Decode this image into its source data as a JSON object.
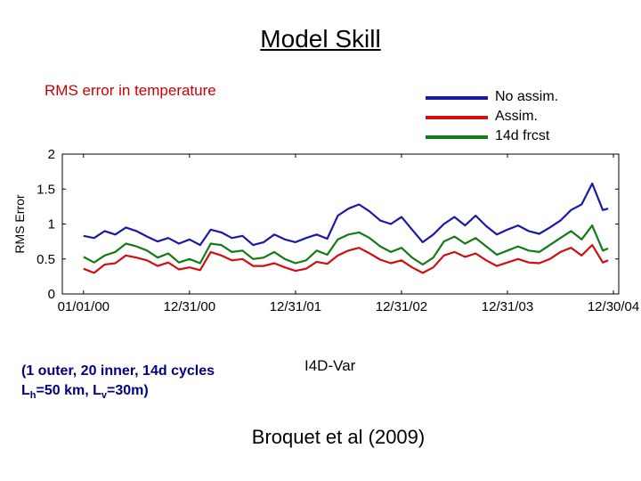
{
  "slide": {
    "title": "Model Skill",
    "note_line1": "(1 outer, 20 inner, 14d cycles",
    "note_l": "L",
    "note_h_sub": "h",
    "note_mid": "=50 km, L",
    "note_v_sub": "v",
    "note_end": "=30m)",
    "method": "I4D-Var",
    "citation": "Broquet et al (2009)"
  },
  "chart_data": {
    "type": "line",
    "title": "RMS error in temperature",
    "xlabel": "",
    "ylabel": "RMS Error",
    "ylim": [
      0,
      2
    ],
    "yticks": [
      0,
      0.5,
      1,
      1.5,
      2
    ],
    "ytick_labels": [
      "0",
      "0.5",
      "1",
      "1.5",
      "2"
    ],
    "xlim": [
      -0.2,
      5.05
    ],
    "xticks": [
      0,
      1,
      2,
      3,
      4,
      5
    ],
    "xtick_labels": [
      "01/01/00",
      "12/31/00",
      "12/31/01",
      "12/31/02",
      "12/31/03",
      "12/30/04"
    ],
    "grid": false,
    "legend_position": "top-right",
    "series": [
      {
        "name": "No assim.",
        "color": "#1a1aa6",
        "x": [
          0,
          0.1,
          0.2,
          0.3,
          0.4,
          0.5,
          0.6,
          0.7,
          0.8,
          0.9,
          1.0,
          1.1,
          1.2,
          1.3,
          1.4,
          1.5,
          1.6,
          1.7,
          1.8,
          1.9,
          2.0,
          2.1,
          2.2,
          2.3,
          2.4,
          2.5,
          2.6,
          2.7,
          2.8,
          2.9,
          3.0,
          3.1,
          3.2,
          3.3,
          3.4,
          3.5,
          3.6,
          3.7,
          3.8,
          3.9,
          4.0,
          4.1,
          4.2,
          4.3,
          4.4,
          4.5,
          4.6,
          4.7,
          4.8,
          4.9,
          4.95
        ],
        "values": [
          0.83,
          0.8,
          0.9,
          0.85,
          0.95,
          0.9,
          0.82,
          0.75,
          0.8,
          0.72,
          0.78,
          0.7,
          0.92,
          0.88,
          0.8,
          0.83,
          0.7,
          0.74,
          0.85,
          0.78,
          0.74,
          0.8,
          0.85,
          0.79,
          1.12,
          1.22,
          1.28,
          1.18,
          1.05,
          1.0,
          1.1,
          0.92,
          0.74,
          0.85,
          1.0,
          1.1,
          0.98,
          1.12,
          0.97,
          0.85,
          0.92,
          0.98,
          0.9,
          0.86,
          0.95,
          1.05,
          1.2,
          1.28,
          1.58,
          1.2,
          1.22
        ]
      },
      {
        "name": "Assim.",
        "color": "#d01010",
        "x": [
          0,
          0.1,
          0.2,
          0.3,
          0.4,
          0.5,
          0.6,
          0.7,
          0.8,
          0.9,
          1.0,
          1.1,
          1.2,
          1.3,
          1.4,
          1.5,
          1.6,
          1.7,
          1.8,
          1.9,
          2.0,
          2.1,
          2.2,
          2.3,
          2.4,
          2.5,
          2.6,
          2.7,
          2.8,
          2.9,
          3.0,
          3.1,
          3.2,
          3.3,
          3.4,
          3.5,
          3.6,
          3.7,
          3.8,
          3.9,
          4.0,
          4.1,
          4.2,
          4.3,
          4.4,
          4.5,
          4.6,
          4.7,
          4.8,
          4.9,
          4.95
        ],
        "values": [
          0.36,
          0.3,
          0.42,
          0.44,
          0.55,
          0.52,
          0.48,
          0.4,
          0.45,
          0.35,
          0.38,
          0.34,
          0.6,
          0.55,
          0.48,
          0.5,
          0.4,
          0.4,
          0.44,
          0.38,
          0.33,
          0.36,
          0.46,
          0.43,
          0.55,
          0.62,
          0.66,
          0.58,
          0.49,
          0.44,
          0.48,
          0.38,
          0.3,
          0.38,
          0.55,
          0.6,
          0.53,
          0.58,
          0.48,
          0.4,
          0.45,
          0.5,
          0.45,
          0.44,
          0.5,
          0.6,
          0.66,
          0.55,
          0.7,
          0.45,
          0.48
        ]
      },
      {
        "name": "14d frcst",
        "color": "#157a15",
        "x": [
          0,
          0.1,
          0.2,
          0.3,
          0.4,
          0.5,
          0.6,
          0.7,
          0.8,
          0.9,
          1.0,
          1.1,
          1.2,
          1.3,
          1.4,
          1.5,
          1.6,
          1.7,
          1.8,
          1.9,
          2.0,
          2.1,
          2.2,
          2.3,
          2.4,
          2.5,
          2.6,
          2.7,
          2.8,
          2.9,
          3.0,
          3.1,
          3.2,
          3.3,
          3.4,
          3.5,
          3.6,
          3.7,
          3.8,
          3.9,
          4.0,
          4.1,
          4.2,
          4.3,
          4.4,
          4.5,
          4.6,
          4.7,
          4.8,
          4.9,
          4.95
        ],
        "values": [
          0.53,
          0.45,
          0.55,
          0.6,
          0.72,
          0.68,
          0.62,
          0.52,
          0.58,
          0.45,
          0.5,
          0.44,
          0.72,
          0.7,
          0.6,
          0.62,
          0.5,
          0.52,
          0.6,
          0.5,
          0.44,
          0.48,
          0.62,
          0.56,
          0.78,
          0.85,
          0.88,
          0.8,
          0.68,
          0.6,
          0.66,
          0.52,
          0.42,
          0.52,
          0.75,
          0.82,
          0.72,
          0.8,
          0.68,
          0.56,
          0.62,
          0.68,
          0.62,
          0.6,
          0.7,
          0.8,
          0.9,
          0.78,
          0.98,
          0.62,
          0.65
        ]
      }
    ]
  }
}
